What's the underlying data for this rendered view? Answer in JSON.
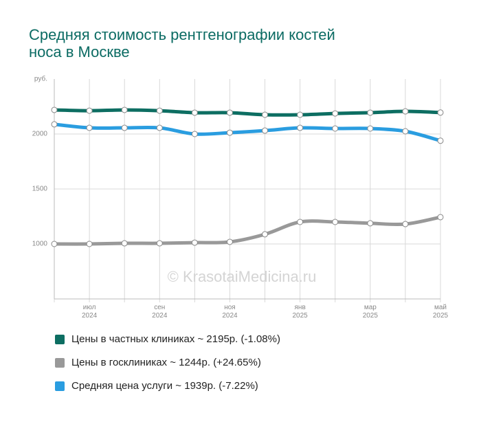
{
  "chart_data": {
    "type": "line",
    "title": "Средняя стоимость рентгенографии костей носа в Москве",
    "watermark": "© KrasotaiMedicina.ru",
    "categories": [
      null,
      "июл 2024",
      null,
      "сен 2024",
      null,
      "ноя 2024",
      null,
      "янв 2025",
      null,
      "мар 2025",
      null,
      "май 2025"
    ],
    "ylim": [
      500,
      2500
    ],
    "yticks": [
      1000,
      1500,
      2000,
      {
        "value": 2500,
        "label": "руб."
      }
    ],
    "grid": true,
    "series": [
      {
        "name": "Цены в частных клиниках ~ 2195р. (-1.08%)",
        "color": "#0d6e62",
        "values": [
          2219,
          2212,
          2219,
          2212,
          2194,
          2194,
          2175,
          2175,
          2187,
          2194,
          2206,
          2195
        ]
      },
      {
        "name": "Цены в госклиниках ~ 1244р. (+24.65%)",
        "color": "#999999",
        "values": [
          1000,
          1000,
          1006,
          1006,
          1012,
          1019,
          1088,
          1200,
          1200,
          1188,
          1181,
          1244
        ]
      },
      {
        "name": "Средняя цена услуги ~ 1939р. (-7.22%)",
        "color": "#2a9de0",
        "values": [
          2088,
          2056,
          2056,
          2056,
          2000,
          2012,
          2031,
          2056,
          2050,
          2050,
          2025,
          1939
        ]
      }
    ]
  }
}
